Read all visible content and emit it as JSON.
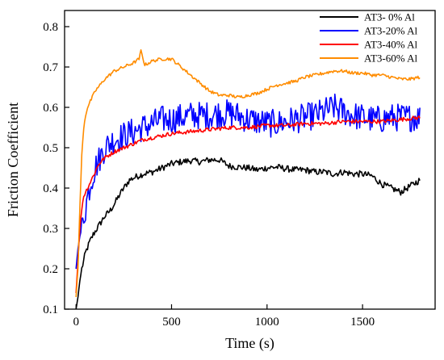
{
  "chart_data": {
    "type": "line",
    "title": "",
    "xlabel": "Time (s)",
    "ylabel": "Friction Coefficient",
    "xlim": [
      -60,
      1880
    ],
    "ylim": [
      0.1,
      0.84
    ],
    "xticks": [
      0,
      500,
      1000,
      1500
    ],
    "yticks": [
      0.1,
      0.2,
      0.3,
      0.4,
      0.5,
      0.6,
      0.7,
      0.8
    ],
    "grid": false,
    "legend_position": "top-right",
    "series": [
      {
        "name": "AT3- 0% Al",
        "color": "#000000",
        "noise": 0.008,
        "values": [
          [
            0,
            0.1
          ],
          [
            10,
            0.13
          ],
          [
            20,
            0.17
          ],
          [
            30,
            0.2
          ],
          [
            40,
            0.22
          ],
          [
            50,
            0.24
          ],
          [
            70,
            0.265
          ],
          [
            90,
            0.285
          ],
          [
            110,
            0.3
          ],
          [
            130,
            0.315
          ],
          [
            150,
            0.33
          ],
          [
            180,
            0.345
          ],
          [
            200,
            0.36
          ],
          [
            230,
            0.385
          ],
          [
            250,
            0.4
          ],
          [
            280,
            0.42
          ],
          [
            300,
            0.425
          ],
          [
            350,
            0.435
          ],
          [
            400,
            0.44
          ],
          [
            450,
            0.45
          ],
          [
            500,
            0.46
          ],
          [
            550,
            0.465
          ],
          [
            600,
            0.468
          ],
          [
            650,
            0.465
          ],
          [
            700,
            0.47
          ],
          [
            750,
            0.47
          ],
          [
            800,
            0.455
          ],
          [
            850,
            0.452
          ],
          [
            900,
            0.45
          ],
          [
            950,
            0.445
          ],
          [
            1000,
            0.45
          ],
          [
            1050,
            0.452
          ],
          [
            1100,
            0.448
          ],
          [
            1150,
            0.445
          ],
          [
            1200,
            0.445
          ],
          [
            1250,
            0.44
          ],
          [
            1300,
            0.44
          ],
          [
            1350,
            0.435
          ],
          [
            1400,
            0.44
          ],
          [
            1450,
            0.435
          ],
          [
            1500,
            0.435
          ],
          [
            1550,
            0.43
          ],
          [
            1600,
            0.41
          ],
          [
            1650,
            0.4
          ],
          [
            1700,
            0.39
          ],
          [
            1750,
            0.405
          ],
          [
            1800,
            0.42
          ]
        ]
      },
      {
        "name": "AT3-20% Al",
        "color": "#0000ff",
        "noise": 0.035,
        "values": [
          [
            0,
            0.2
          ],
          [
            10,
            0.25
          ],
          [
            20,
            0.28
          ],
          [
            30,
            0.3
          ],
          [
            40,
            0.33
          ],
          [
            50,
            0.35
          ],
          [
            60,
            0.38
          ],
          [
            80,
            0.42
          ],
          [
            100,
            0.45
          ],
          [
            120,
            0.47
          ],
          [
            150,
            0.5
          ],
          [
            200,
            0.52
          ],
          [
            250,
            0.53
          ],
          [
            300,
            0.54
          ],
          [
            350,
            0.55
          ],
          [
            400,
            0.56
          ],
          [
            450,
            0.57
          ],
          [
            500,
            0.57
          ],
          [
            550,
            0.575
          ],
          [
            600,
            0.58
          ],
          [
            650,
            0.58
          ],
          [
            700,
            0.58
          ],
          [
            750,
            0.585
          ],
          [
            800,
            0.585
          ],
          [
            850,
            0.58
          ],
          [
            900,
            0.57
          ],
          [
            950,
            0.565
          ],
          [
            1000,
            0.56
          ],
          [
            1050,
            0.56
          ],
          [
            1100,
            0.565
          ],
          [
            1150,
            0.57
          ],
          [
            1200,
            0.575
          ],
          [
            1250,
            0.58
          ],
          [
            1300,
            0.59
          ],
          [
            1350,
            0.6
          ],
          [
            1400,
            0.59
          ],
          [
            1450,
            0.58
          ],
          [
            1500,
            0.575
          ],
          [
            1550,
            0.57
          ],
          [
            1600,
            0.57
          ],
          [
            1650,
            0.575
          ],
          [
            1700,
            0.575
          ],
          [
            1750,
            0.575
          ],
          [
            1800,
            0.575
          ]
        ]
      },
      {
        "name": "AT3-40% Al",
        "color": "#ff0000",
        "noise": 0.005,
        "values": [
          [
            0,
            0.14
          ],
          [
            10,
            0.22
          ],
          [
            20,
            0.3
          ],
          [
            30,
            0.35
          ],
          [
            40,
            0.38
          ],
          [
            50,
            0.39
          ],
          [
            60,
            0.4
          ],
          [
            80,
            0.42
          ],
          [
            100,
            0.44
          ],
          [
            120,
            0.46
          ],
          [
            150,
            0.475
          ],
          [
            200,
            0.49
          ],
          [
            250,
            0.5
          ],
          [
            300,
            0.51
          ],
          [
            350,
            0.52
          ],
          [
            400,
            0.525
          ],
          [
            450,
            0.53
          ],
          [
            500,
            0.535
          ],
          [
            600,
            0.54
          ],
          [
            700,
            0.545
          ],
          [
            800,
            0.55
          ],
          [
            900,
            0.55
          ],
          [
            1000,
            0.555
          ],
          [
            1100,
            0.555
          ],
          [
            1200,
            0.56
          ],
          [
            1300,
            0.56
          ],
          [
            1400,
            0.565
          ],
          [
            1500,
            0.565
          ],
          [
            1600,
            0.565
          ],
          [
            1700,
            0.57
          ],
          [
            1800,
            0.575
          ]
        ]
      },
      {
        "name": "AT3-60% Al",
        "color": "#ff8c00",
        "noise": 0.004,
        "values": [
          [
            0,
            0.13
          ],
          [
            10,
            0.2
          ],
          [
            20,
            0.35
          ],
          [
            30,
            0.48
          ],
          [
            40,
            0.55
          ],
          [
            50,
            0.58
          ],
          [
            60,
            0.6
          ],
          [
            80,
            0.62
          ],
          [
            100,
            0.64
          ],
          [
            150,
            0.67
          ],
          [
            200,
            0.69
          ],
          [
            250,
            0.7
          ],
          [
            300,
            0.71
          ],
          [
            330,
            0.72
          ],
          [
            340,
            0.74
          ],
          [
            360,
            0.705
          ],
          [
            400,
            0.715
          ],
          [
            450,
            0.72
          ],
          [
            500,
            0.72
          ],
          [
            550,
            0.7
          ],
          [
            600,
            0.68
          ],
          [
            650,
            0.66
          ],
          [
            700,
            0.64
          ],
          [
            750,
            0.63
          ],
          [
            800,
            0.63
          ],
          [
            850,
            0.625
          ],
          [
            900,
            0.63
          ],
          [
            950,
            0.635
          ],
          [
            1000,
            0.645
          ],
          [
            1050,
            0.655
          ],
          [
            1100,
            0.66
          ],
          [
            1150,
            0.665
          ],
          [
            1200,
            0.675
          ],
          [
            1250,
            0.68
          ],
          [
            1300,
            0.685
          ],
          [
            1350,
            0.69
          ],
          [
            1400,
            0.69
          ],
          [
            1450,
            0.685
          ],
          [
            1500,
            0.685
          ],
          [
            1550,
            0.68
          ],
          [
            1600,
            0.68
          ],
          [
            1650,
            0.675
          ],
          [
            1700,
            0.67
          ],
          [
            1750,
            0.67
          ],
          [
            1800,
            0.675
          ]
        ]
      }
    ]
  }
}
